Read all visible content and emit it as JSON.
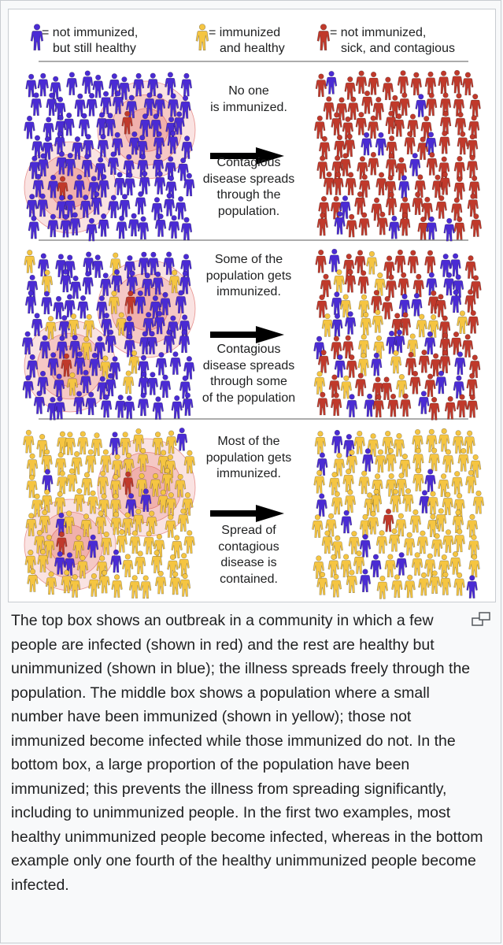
{
  "colors": {
    "not_immunized": "#4a2bd4",
    "immunized": "#f5c542",
    "sick": "#c0392b",
    "spread_ring": "#e8807a"
  },
  "legend": [
    {
      "color_key": "not_immunized",
      "line1": "= not immunized,",
      "line2": "but still healthy"
    },
    {
      "color_key": "immunized",
      "line1": "= immunized",
      "line2": "and healthy"
    },
    {
      "color_key": "sick",
      "line1": "= not immunized,",
      "line2": "sick, and contagious"
    }
  ],
  "panels": [
    {
      "name": "no-immunization",
      "top_text": [
        "No one",
        "is immunized."
      ],
      "bottom_text": [
        "Contagious",
        "disease spreads",
        "through the",
        "population."
      ],
      "immunized_fraction_before": 0,
      "infected_fraction_after": 0.92
    },
    {
      "name": "some-immunization",
      "top_text": [
        "Some of the",
        "population gets",
        "immunized."
      ],
      "bottom_text": [
        "Contagious",
        "disease spreads",
        "through some",
        "of the population"
      ],
      "immunized_fraction_before": 0.15,
      "infected_fraction_after": 0.72
    },
    {
      "name": "most-immunization",
      "top_text": [
        "Most of the",
        "population gets",
        "immunized."
      ],
      "bottom_text": [
        "Spread of",
        "contagious",
        "disease is",
        "contained."
      ],
      "immunized_fraction_before": 0.88,
      "infected_fraction_after": 0.03
    }
  ],
  "caption": "The top box shows an outbreak in a community in which a few people are infected (shown in red) and the rest are healthy but unimmunized (shown in blue); the illness spreads freely through the population. The middle box shows a population where a small number have been immunized (shown in yellow); those not immunized become infected while those immunized do not. In the bottom box, a large proportion of the population have been immunized; this prevents the illness from spreading significantly, including to unimmunized people. In the first two examples, most healthy unimmunized people become infected, whereas in the bottom example only one fourth of the healthy unimmunized people become infected.",
  "enlarge_icon": "enlarge-icon"
}
